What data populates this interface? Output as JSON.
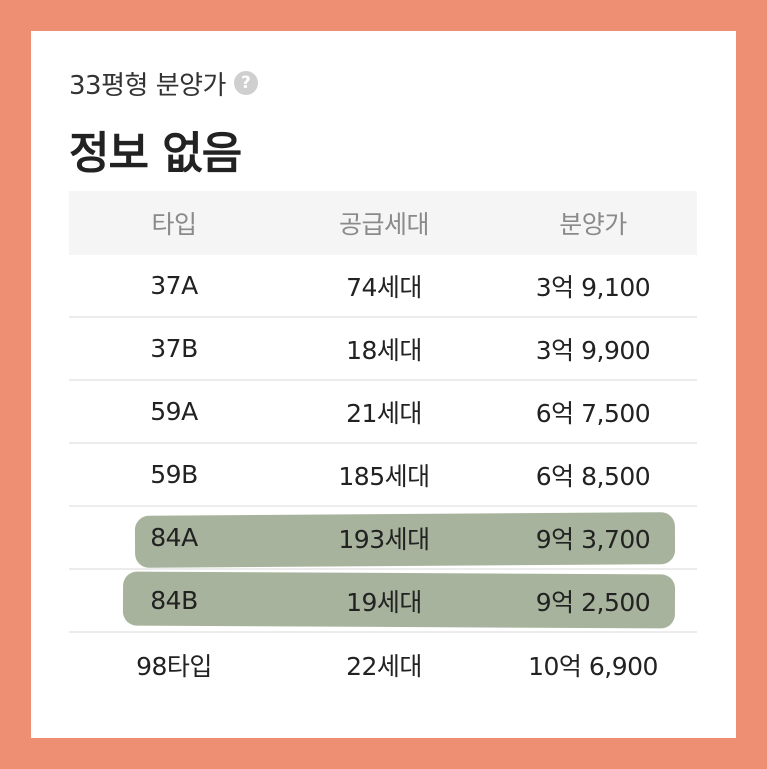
{
  "header": {
    "subtitle": "33평형 분양가",
    "help_icon": "help-icon",
    "help_glyph": "?",
    "price_value": "정보 없음"
  },
  "table": {
    "columns": [
      "타입",
      "공급세대",
      "분양가"
    ],
    "rows": [
      {
        "type": "37A",
        "households": "74세대",
        "price": "3억 9,100",
        "highlighted": false
      },
      {
        "type": "37B",
        "households": "18세대",
        "price": "3억 9,900",
        "highlighted": false
      },
      {
        "type": "59A",
        "households": "21세대",
        "price": "6억 7,500",
        "highlighted": false
      },
      {
        "type": "59B",
        "households": "185세대",
        "price": "6억 8,500",
        "highlighted": false
      },
      {
        "type": "84A",
        "households": "193세대",
        "price": "9억 3,700",
        "highlighted": true
      },
      {
        "type": "84B",
        "households": "19세대",
        "price": "9억 2,500",
        "highlighted": true
      },
      {
        "type": "98타입",
        "households": "22세대",
        "price": "10억 6,900",
        "highlighted": false
      }
    ]
  },
  "colors": {
    "frame": "#EE8E72",
    "highlight": "#8E9D80",
    "header_bg": "#F5F5F5"
  }
}
